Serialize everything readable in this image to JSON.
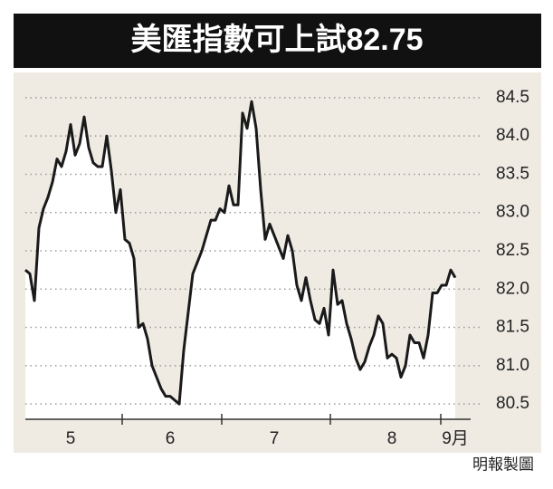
{
  "chart_data": {
    "type": "line",
    "title": "美匯指數可上試82.75",
    "source": "明報製圖",
    "categories": [
      null,
      null,
      null,
      null,
      null,
      null,
      null,
      null,
      null,
      null,
      "5",
      null,
      null,
      null,
      null,
      null,
      null,
      null,
      null,
      null,
      null,
      null,
      null,
      null,
      null,
      null,
      null,
      null,
      null,
      null,
      null,
      null,
      "6",
      null,
      null,
      null,
      null,
      null,
      null,
      null,
      null,
      null,
      null,
      null,
      null,
      null,
      null,
      null,
      null,
      null,
      null,
      null,
      null,
      null,
      null,
      "7",
      null,
      null,
      null,
      null,
      null,
      null,
      null,
      null,
      null,
      null,
      null,
      null,
      null,
      null,
      null,
      null,
      null,
      null,
      null,
      null,
      null,
      null,
      null,
      null,
      null,
      "8",
      null,
      null,
      null,
      null,
      null,
      null,
      null,
      null,
      null,
      null,
      null,
      null,
      null,
      "9月"
    ],
    "series": [
      {
        "color": "#1a1a1a",
        "values": [
          82.25,
          82.2,
          81.85,
          82.8,
          83.05,
          83.2,
          83.4,
          83.7,
          83.6,
          83.8,
          84.15,
          83.75,
          83.9,
          84.25,
          83.85,
          83.65,
          83.6,
          83.6,
          84.0,
          83.55,
          83.0,
          83.3,
          82.65,
          82.6,
          82.4,
          81.5,
          81.55,
          81.35,
          81.0,
          80.85,
          80.7,
          80.6,
          80.6,
          80.55,
          80.5,
          81.2,
          81.7,
          82.2,
          82.35,
          82.5,
          82.7,
          82.9,
          82.9,
          83.05,
          83.0,
          83.35,
          83.1,
          83.1,
          84.3,
          84.1,
          84.45,
          84.1,
          83.3,
          82.65,
          82.85,
          82.7,
          82.55,
          82.4,
          82.7,
          82.5,
          82.05,
          81.85,
          82.15,
          81.85,
          81.6,
          81.55,
          81.75,
          81.4,
          82.25,
          81.8,
          81.85,
          81.55,
          81.35,
          81.1,
          80.95,
          81.05,
          81.25,
          81.4,
          81.65,
          81.55,
          81.1,
          81.15,
          81.1,
          80.85,
          81.0,
          81.4,
          81.3,
          81.3,
          81.1,
          81.4,
          81.95,
          81.95,
          82.05,
          82.05,
          82.25,
          82.15
        ]
      }
    ],
    "ylim": [
      80.3,
      84.7
    ],
    "yticks": [
      80.5,
      {
        "value": 81,
        "label": "81.0"
      },
      81.5,
      {
        "value": 82,
        "label": "82.0"
      },
      82.5,
      {
        "value": 83,
        "label": "83.0"
      },
      83.5,
      {
        "value": 84,
        "label": "84.0"
      },
      84.5
    ],
    "grid": true
  }
}
